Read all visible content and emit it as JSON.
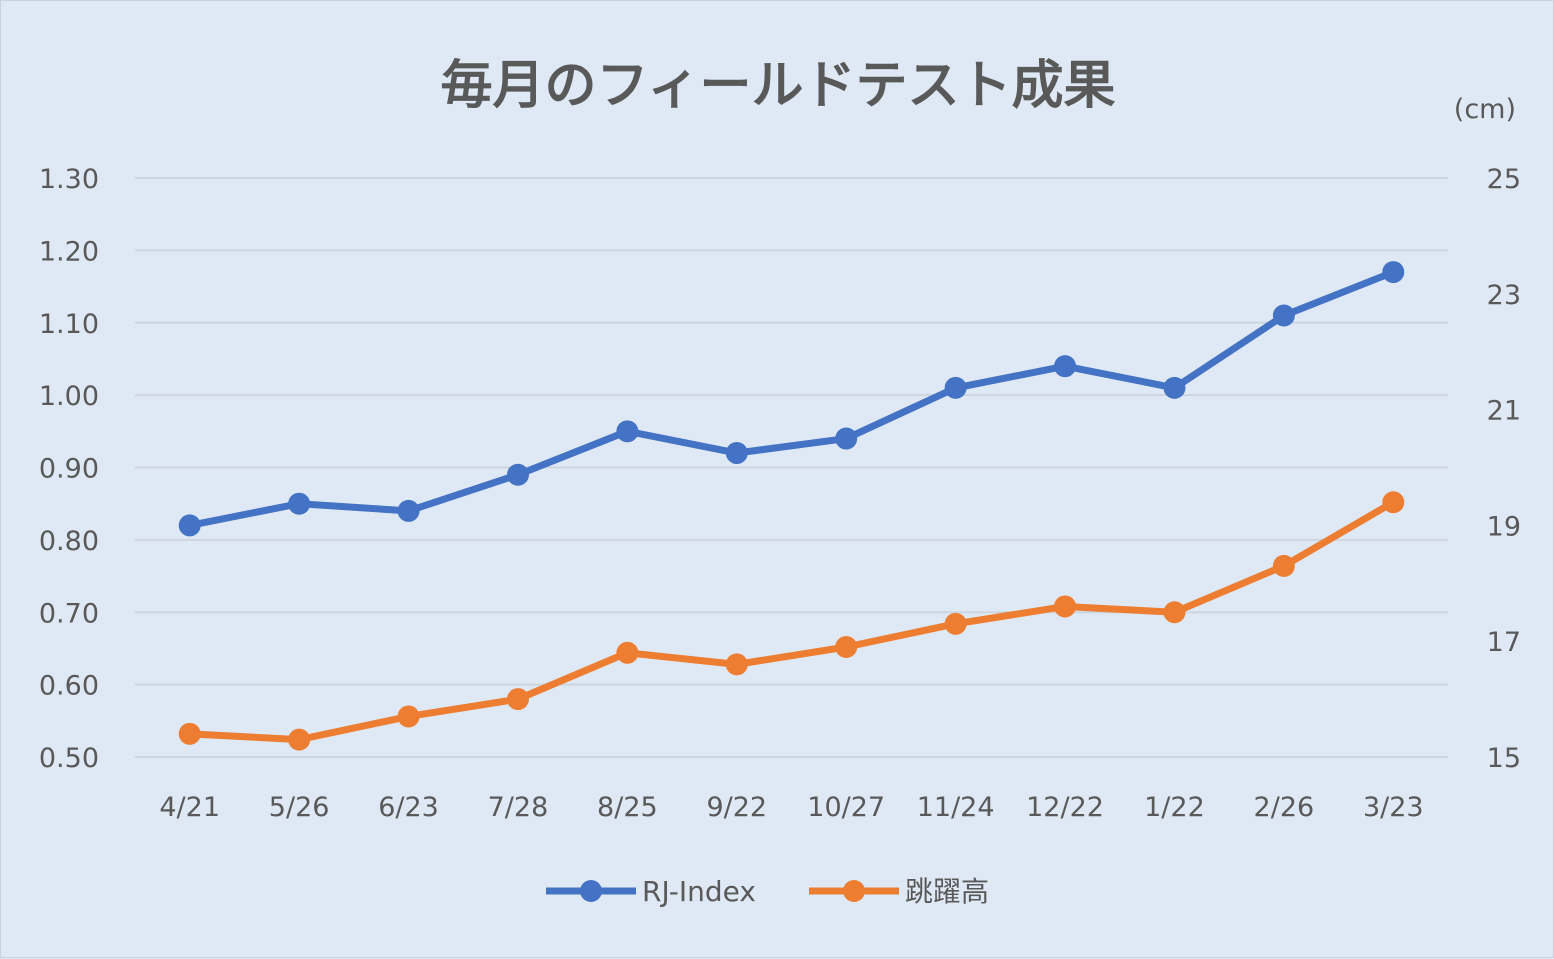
{
  "chart_data": {
    "type": "line",
    "title": "毎月のフィールドテスト成果",
    "categories": [
      "4/21",
      "5/26",
      "6/23",
      "7/28",
      "8/25",
      "9/22",
      "10/27",
      "11/24",
      "12/22",
      "1/22",
      "2/26",
      "3/23"
    ],
    "y_left": {
      "ylim": [
        0.5,
        1.3
      ],
      "ticks": [
        "0.50",
        "0.60",
        "0.70",
        "0.80",
        "0.90",
        "1.00",
        "1.10",
        "1.20",
        "1.30"
      ]
    },
    "y_right": {
      "unit_label": "(cm)",
      "ylim": [
        15,
        25
      ],
      "ticks": [
        "15",
        "17",
        "19",
        "21",
        "23",
        "25"
      ]
    },
    "grid": true,
    "legend_position": "bottom",
    "series": [
      {
        "name": "RJ-Index",
        "axis": "left",
        "color": "#4472c4",
        "values": [
          0.82,
          0.85,
          0.84,
          0.89,
          0.95,
          0.92,
          0.94,
          1.01,
          1.04,
          1.01,
          1.11,
          1.17
        ]
      },
      {
        "name": "跳躍高",
        "axis": "right",
        "color": "#ed7d31",
        "values": [
          15.4,
          15.3,
          15.7,
          16.0,
          16.8,
          16.6,
          16.9,
          17.3,
          17.6,
          17.5,
          18.3,
          19.4
        ]
      }
    ]
  }
}
